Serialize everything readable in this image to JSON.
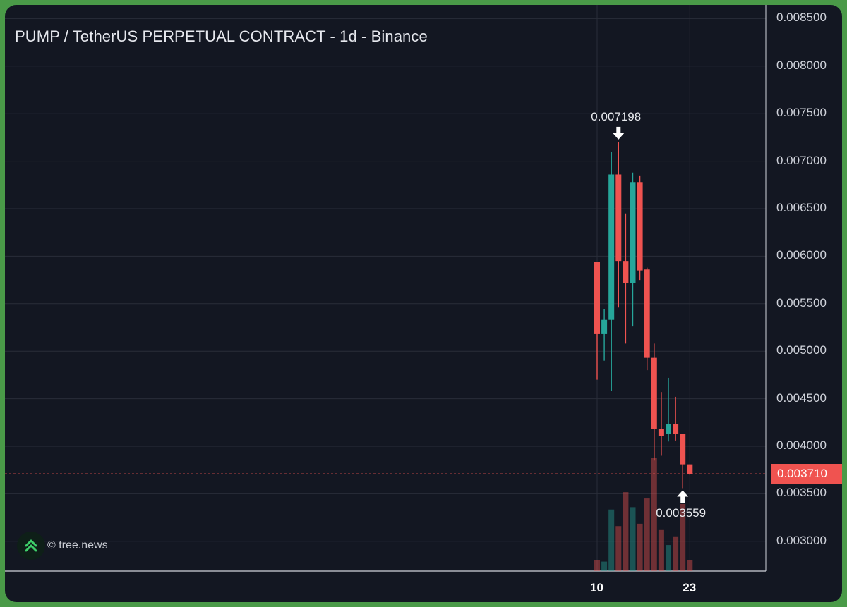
{
  "title": "PUMP / TetherUS PERPETUAL CONTRACT - 1d - Binance",
  "watermark": "© tree.news",
  "logo_icon": "double-chevron-up-icon",
  "colors": {
    "background": "#131722",
    "frame": "#4a9a48",
    "up": "#26a69a",
    "down": "#ef5350",
    "grid": "#2a2e39"
  },
  "current_price": {
    "value": 0.00371,
    "label": "0.003710"
  },
  "annotations": {
    "high": {
      "value": 0.007198,
      "label": "0.007198",
      "candle_index": 3
    },
    "low": {
      "value": 0.003559,
      "label": "0.003559",
      "candle_index": 12
    }
  },
  "chart_data": {
    "type": "candlestick",
    "title": "PUMP / TetherUS PERPETUAL CONTRACT - 1d - Binance",
    "ylim": [
      0.00268,
      0.00862
    ],
    "y_ticks": [
      "0.008500",
      "0.008000",
      "0.007500",
      "0.007000",
      "0.006500",
      "0.006000",
      "0.005500",
      "0.005000",
      "0.004500",
      "0.004000",
      "0.003500",
      "0.003000"
    ],
    "y_tick_values": [
      0.0085,
      0.008,
      0.0075,
      0.007,
      0.0065,
      0.006,
      0.0055,
      0.005,
      0.0045,
      0.004,
      0.0035,
      0.003
    ],
    "x_ticks": [
      {
        "label": "10",
        "candle_index": 0
      },
      {
        "label": "23",
        "candle_index": 13
      }
    ],
    "grid": true,
    "candles": [
      {
        "open": 0.00594,
        "high": 0.00594,
        "low": 0.0047,
        "close": 0.00518,
        "volume": 0.14
      },
      {
        "open": 0.00518,
        "high": 0.00544,
        "low": 0.0049,
        "close": 0.00533,
        "volume": 0.12
      },
      {
        "open": 0.00533,
        "high": 0.0071,
        "low": 0.00458,
        "close": 0.00686,
        "volume": 0.78
      },
      {
        "open": 0.00686,
        "high": 0.007198,
        "low": 0.00546,
        "close": 0.00595,
        "volume": 0.57
      },
      {
        "open": 0.00595,
        "high": 0.00645,
        "low": 0.00508,
        "close": 0.00572,
        "volume": 1.0
      },
      {
        "open": 0.00572,
        "high": 0.00688,
        "low": 0.00526,
        "close": 0.00678,
        "volume": 0.81
      },
      {
        "open": 0.00678,
        "high": 0.00685,
        "low": 0.00575,
        "close": 0.00585,
        "volume": 0.6
      },
      {
        "open": 0.00586,
        "high": 0.00588,
        "low": 0.0048,
        "close": 0.00493,
        "volume": 0.92
      },
      {
        "open": 0.00493,
        "high": 0.00508,
        "low": 0.00385,
        "close": 0.00418,
        "volume": 1.43
      },
      {
        "open": 0.00418,
        "high": 0.00457,
        "low": 0.0039,
        "close": 0.00411,
        "volume": 0.52
      },
      {
        "open": 0.00413,
        "high": 0.00472,
        "low": 0.00405,
        "close": 0.00423,
        "volume": 0.33
      },
      {
        "open": 0.00423,
        "high": 0.00452,
        "low": 0.00406,
        "close": 0.00413,
        "volume": 0.44
      },
      {
        "open": 0.00413,
        "high": 0.00413,
        "low": 0.003559,
        "close": 0.00381,
        "volume": 0.85
      },
      {
        "open": 0.00381,
        "high": 0.00381,
        "low": 0.0037,
        "close": 0.00371,
        "volume": 0.14
      }
    ]
  }
}
